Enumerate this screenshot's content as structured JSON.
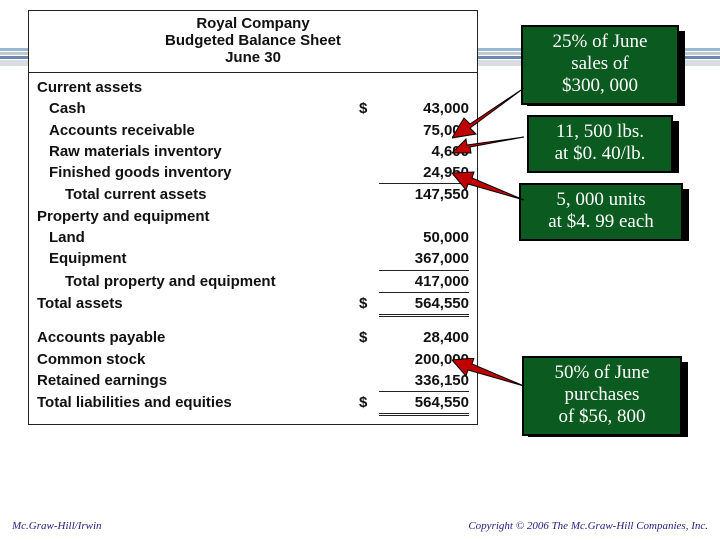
{
  "header": {
    "company": "Royal Company",
    "title": "Budgeted Balance Sheet",
    "date": "June 30"
  },
  "rows": [
    {
      "label": "Current assets",
      "indent": 0,
      "cur": "",
      "val": ""
    },
    {
      "label": "Cash",
      "indent": 1,
      "cur": "$",
      "val": "43,000"
    },
    {
      "label": "Accounts receivable",
      "indent": 1,
      "cur": "",
      "val": "75,000"
    },
    {
      "label": "Raw materials inventory",
      "indent": 1,
      "cur": "",
      "val": "4,600"
    },
    {
      "label": "Finished goods inventory",
      "indent": 1,
      "cur": "",
      "val": "24,950"
    },
    {
      "label": "Total current assets",
      "indent": 2,
      "cur": "",
      "val": "147,550",
      "rule": "top"
    },
    {
      "label": "Property and equipment",
      "indent": 0,
      "cur": "",
      "val": ""
    },
    {
      "label": "Land",
      "indent": 1,
      "cur": "",
      "val": "50,000"
    },
    {
      "label": "Equipment",
      "indent": 1,
      "cur": "",
      "val": "367,000"
    },
    {
      "label": "Total property and equipment",
      "indent": 2,
      "cur": "",
      "val": "417,000",
      "rule": "top"
    },
    {
      "label": "Total assets",
      "indent": 0,
      "cur": "$",
      "val": "564,550",
      "rule": "dbl"
    },
    {
      "spacer": true
    },
    {
      "label": "Accounts payable",
      "indent": 0,
      "cur": "$",
      "val": "28,400"
    },
    {
      "label": "Common stock",
      "indent": 0,
      "cur": "",
      "val": "200,000"
    },
    {
      "label": "Retained earnings",
      "indent": 0,
      "cur": "",
      "val": "336,150"
    },
    {
      "label": "Total liabilities and equities",
      "indent": 0,
      "cur": "$",
      "val": "564,550",
      "rule": "dbl"
    }
  ],
  "callouts": {
    "c1": {
      "l1": "25% of June",
      "l2": "sales of",
      "l3": "$300, 000"
    },
    "c2": {
      "l1": "11, 500 lbs.",
      "l2": "at $0. 40/lb."
    },
    "c3": {
      "l1": "5, 000 units",
      "l2": "at $4. 99 each"
    },
    "c4": {
      "l1": "50% of June",
      "l2": "purchases",
      "l3": "of $56, 800"
    }
  },
  "footer": {
    "left": "Mc.Graw-Hill/Irwin",
    "right": "Copyright © 2006 The Mc.Graw-Hill Companies, Inc."
  },
  "style": {
    "callout_bg": "#0b5a1f",
    "callout_border": "#000000",
    "arrow_fill": "#c00000",
    "arrow_stroke": "#000000"
  }
}
